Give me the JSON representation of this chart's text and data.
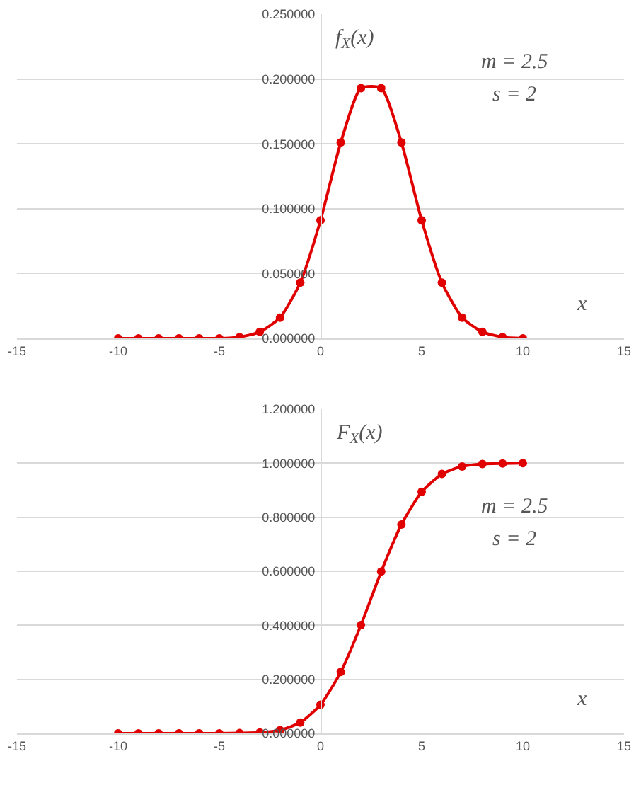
{
  "chart_data": [
    {
      "type": "line",
      "x": [
        -10,
        -9,
        -8,
        -7,
        -6,
        -5,
        -4,
        -3,
        -2,
        -1,
        0,
        1,
        2,
        3,
        4,
        5,
        6,
        7,
        8,
        9,
        10
      ],
      "series": [
        {
          "color": "#e00000",
          "values": [
            0,
            0,
            0,
            0,
            0,
            0,
            0.001,
            0.005,
            0.016,
            0.043,
            0.091,
            0.151,
            0.193,
            0.193,
            0.151,
            0.091,
            0.043,
            0.016,
            0.005,
            0.001,
            0
          ]
        }
      ],
      "ylabel": "f$_{X}$(x)",
      "xlabel": "x",
      "annotations": [
        "m = 2.5",
        "s = 2"
      ],
      "xlim": [
        -15,
        15
      ],
      "xticks": [
        -15,
        -10,
        -5,
        0,
        5,
        10,
        15
      ],
      "ylim": [
        0,
        0.25
      ],
      "yticks": [
        {
          "value": 0,
          "label": "0.000000"
        },
        {
          "value": 0.05,
          "label": "0.050000"
        },
        {
          "value": 0.1,
          "label": "0.100000"
        },
        {
          "value": 0.15,
          "label": "0.150000"
        },
        {
          "value": 0.2,
          "label": "0.200000"
        },
        {
          "value": 0.25,
          "label": "0.250000"
        }
      ],
      "grid": "y",
      "marker": "circle",
      "line_style": "solid"
    },
    {
      "type": "line",
      "x": [
        -10,
        -9,
        -8,
        -7,
        -6,
        -5,
        -4,
        -3,
        -2,
        -1,
        0,
        1,
        2,
        3,
        4,
        5,
        6,
        7,
        8,
        9,
        10
      ],
      "series": [
        {
          "color": "#e00000",
          "values": [
            0,
            0,
            0,
            0,
            0,
            0,
            0.001,
            0.003,
            0.012,
            0.04,
            0.106,
            0.227,
            0.401,
            0.599,
            0.773,
            0.894,
            0.96,
            0.988,
            0.997,
            0.999,
            1
          ]
        }
      ],
      "ylabel": "F$_{X}$(x)",
      "xlabel": "x",
      "annotations": [
        "m = 2.5",
        "s = 2"
      ],
      "xlim": [
        -15,
        15
      ],
      "xticks": [
        -15,
        -10,
        -5,
        0,
        5,
        10,
        15
      ],
      "ylim": [
        0,
        1.2
      ],
      "yticks": [
        {
          "value": 0,
          "label": "0.000000"
        },
        {
          "value": 0.2,
          "label": "0.200000"
        },
        {
          "value": 0.4,
          "label": "0.400000"
        },
        {
          "value": 0.6,
          "label": "0.600000"
        },
        {
          "value": 0.8,
          "label": "0.800000"
        },
        {
          "value": 1,
          "label": "1.000000"
        },
        {
          "value": 1.2,
          "label": "1.200000"
        }
      ],
      "grid": "y",
      "marker": "circle",
      "line_style": "solid"
    }
  ]
}
